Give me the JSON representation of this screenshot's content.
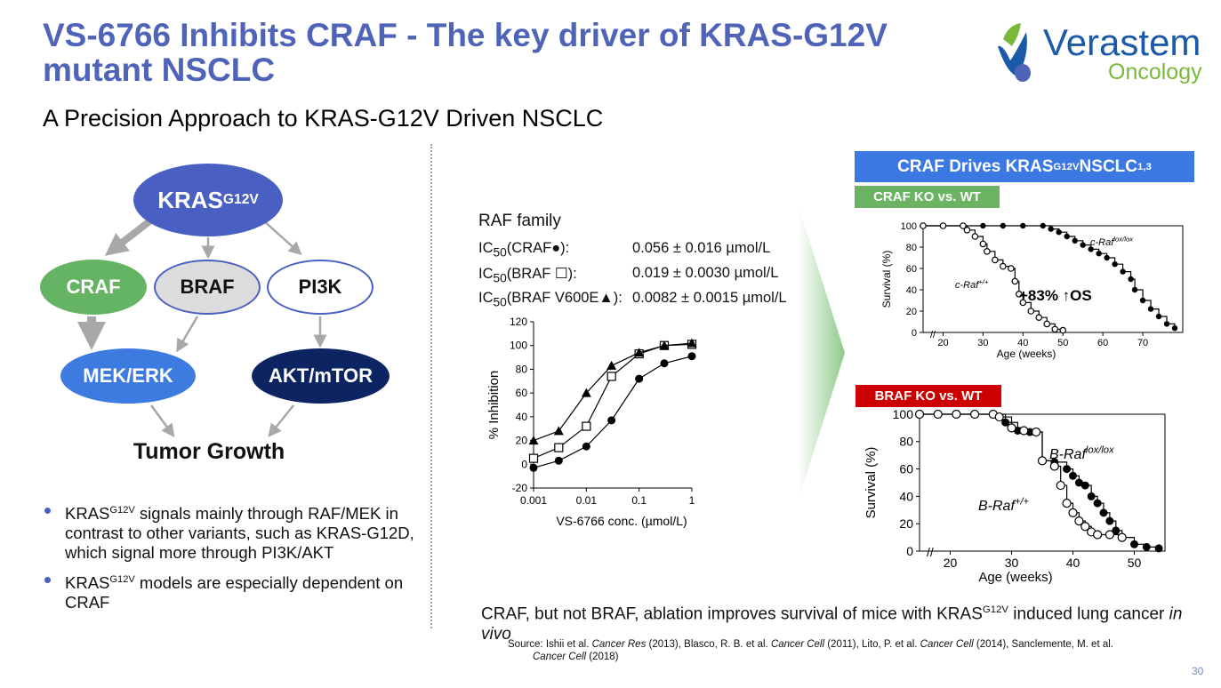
{
  "title": "VS-6766 Inhibits CRAF - The key driver of KRAS-G12V mutant NSCLC",
  "subtitle": "A Precision Approach to KRAS-G12V Driven NSCLC",
  "logo": {
    "name": "Verastem",
    "sub": "Oncology",
    "colors": {
      "primary": "#1a5aa8",
      "green": "#7ab83b"
    }
  },
  "diagram": {
    "kras_base": "KRAS",
    "kras_sup": "G12V",
    "craf": "CRAF",
    "braf": "BRAF",
    "pi3k": "PI3K",
    "mek": "MEK/ERK",
    "akt": "AKT/mTOR",
    "tumor": "Tumor Growth",
    "colors": {
      "kras": "#4a5fc2",
      "craf": "#64b464",
      "mek": "#3e7be0",
      "akt": "#0d2463"
    }
  },
  "bullets": [
    {
      "pre": "KRAS",
      "sup": "G12V",
      "post": " signals mainly through RAF/MEK in contrast to other variants, such as KRAS-G12D, which signal more through PI3K/AKT"
    },
    {
      "pre": "KRAS",
      "sup": "G12V",
      "post": " models are especially dependent on CRAF"
    }
  ],
  "raf_family": {
    "heading": "RAF family",
    "rows": [
      {
        "label_pre": "IC",
        "label_sub": "50",
        "label_post": "(CRAF●):",
        "value": "0.056 ± 0.016 µmol/L"
      },
      {
        "label_pre": "IC",
        "label_sub": "50",
        "label_post": "(BRAF ☐):",
        "value": "0.019 ± 0.0030 µmol/L"
      },
      {
        "label_pre": "IC",
        "label_sub": "50",
        "label_post": "(BRAF V600E▲):",
        "value": "0.0082 ± 0.0015 µmol/L"
      }
    ]
  },
  "panel_right": {
    "banner_pre": "CRAF Drives KRAS",
    "banner_sup": "G12V",
    "banner_mid": " NSCLC",
    "banner_sup2": "1,3",
    "craf_ko": "CRAF KO vs. WT",
    "braf_ko": "BRAF KO vs. WT",
    "colors": {
      "banner": "#3b78e4",
      "craf_ko": "#6cb464",
      "braf_ko": "#cc0000"
    }
  },
  "conclusion": {
    "pre": "CRAF, but not BRAF, ablation improves survival of mice with KRAS",
    "sup": "G12V",
    "mid": " induced lung cancer ",
    "em": "in vivo"
  },
  "source": {
    "p1": "Source: Ishii et al. ",
    "e1": "Cancer Res",
    "p2": " (2013), Blasco, R. B. et al. ",
    "e2": "Cancer Cell",
    "p3": " (2011), Lito, P. et al. ",
    "e3": "Cancer Cell",
    "p4": " (2014), Sanclemente, M. et al.",
    "e4": "Cancer Cell",
    "p5": " (2018)"
  },
  "page_number": "30",
  "chart_data": [
    {
      "type": "line",
      "xlabel": "VS-6766  conc. (µmol/L)",
      "ylabel": "% Inhibition",
      "xscale": "log",
      "xlim": [
        0.001,
        1
      ],
      "ylim": [
        -20,
        120
      ],
      "x_ticks": [
        "0.001",
        "0.01",
        "0.1",
        "1"
      ],
      "y_ticks": [
        "-20",
        "0",
        "20",
        "40",
        "60",
        "80",
        "100",
        "120"
      ],
      "x": [
        0.001,
        0.003,
        0.01,
        0.03,
        0.1,
        0.3,
        1
      ],
      "series": [
        {
          "name": "CRAF",
          "marker": "circle-filled",
          "values": [
            -3,
            3,
            15,
            37,
            72,
            85,
            91
          ]
        },
        {
          "name": "BRAF",
          "marker": "square-open",
          "values": [
            5,
            14,
            32,
            74,
            93,
            100,
            101
          ]
        },
        {
          "name": "BRAF V600E",
          "marker": "triangle-filled",
          "values": [
            20,
            28,
            60,
            83,
            94,
            100,
            102
          ]
        }
      ]
    },
    {
      "type": "line",
      "xlabel": "Age (weeks)",
      "ylabel": "Survival (%)",
      "xlim": [
        15,
        80
      ],
      "ylim": [
        0,
        100
      ],
      "x_ticks": [
        "20",
        "30",
        "40",
        "50",
        "60",
        "70"
      ],
      "y_ticks": [
        "0",
        "20",
        "40",
        "60",
        "80",
        "100"
      ],
      "annotation": "+83% ↑OS",
      "series": [
        {
          "name": "c-Raf",
          "label_sup": "lox/lox",
          "marker": "circle-filled",
          "x": [
            15,
            20,
            25,
            30,
            35,
            40,
            45,
            47,
            49,
            51,
            53,
            55,
            57,
            59,
            61,
            63,
            65,
            67,
            68,
            70,
            72,
            74,
            76,
            78
          ],
          "values": [
            100,
            100,
            100,
            100,
            100,
            100,
            100,
            97,
            94,
            90,
            86,
            82,
            78,
            74,
            70,
            64,
            57,
            50,
            40,
            30,
            22,
            15,
            8,
            4
          ]
        },
        {
          "name": "c-Raf",
          "label_sup": "+/+",
          "marker": "circle-open",
          "x": [
            15,
            20,
            25,
            26,
            28,
            30,
            31,
            33,
            35,
            37,
            38,
            39,
            40,
            42,
            44,
            46,
            48,
            50
          ],
          "values": [
            100,
            100,
            100,
            96,
            90,
            83,
            76,
            68,
            62,
            60,
            48,
            36,
            28,
            20,
            14,
            8,
            3,
            2
          ]
        }
      ]
    },
    {
      "type": "line",
      "xlabel": "Age (weeks)",
      "ylabel": "Survival (%)",
      "xlim": [
        15,
        55
      ],
      "ylim": [
        0,
        100
      ],
      "x_ticks": [
        "20",
        "30",
        "40",
        "50"
      ],
      "y_ticks": [
        "0",
        "20",
        "40",
        "60",
        "80",
        "100"
      ],
      "series": [
        {
          "name": "B-Raf",
          "label_sup": "lox/lox",
          "marker": "circle-filled",
          "x": [
            15,
            18,
            21,
            24,
            27,
            29,
            31,
            33,
            35,
            37,
            39,
            40,
            41,
            42,
            43,
            44,
            45,
            46,
            47,
            48,
            50,
            52,
            54
          ],
          "values": [
            100,
            100,
            100,
            100,
            100,
            94,
            88,
            87,
            66,
            65,
            60,
            55,
            50,
            48,
            40,
            35,
            28,
            22,
            15,
            10,
            5,
            3,
            2
          ]
        },
        {
          "name": "B-Raf",
          "label_sup": "+/+",
          "marker": "circle-open",
          "x": [
            15,
            18,
            21,
            24,
            27,
            28,
            30,
            32,
            34,
            35,
            37,
            38,
            39,
            40,
            41,
            42,
            43,
            44,
            46,
            48
          ],
          "values": [
            100,
            100,
            100,
            100,
            100,
            98,
            90,
            88,
            87,
            66,
            62,
            48,
            35,
            28,
            22,
            18,
            14,
            12,
            12,
            10
          ]
        }
      ]
    }
  ]
}
